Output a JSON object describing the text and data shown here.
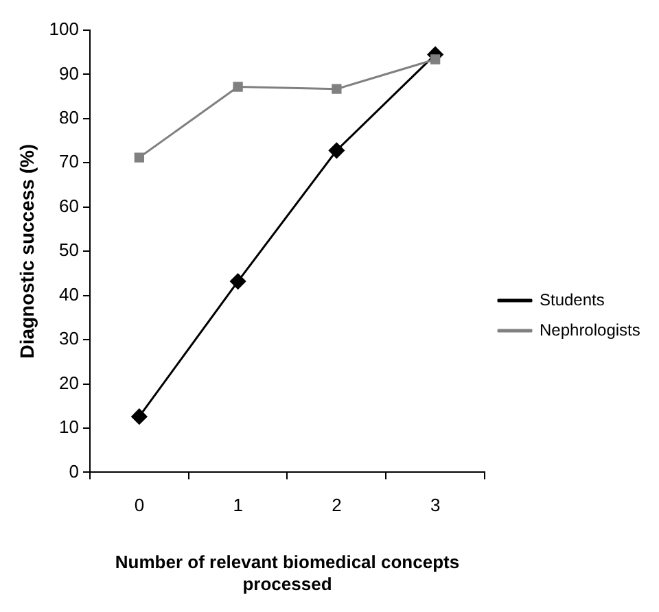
{
  "chart_data": {
    "type": "line",
    "xlabel": "Number of relevant biomedical concepts processed",
    "ylabel": "Diagnostic success (%)",
    "categories": [
      "0",
      "1",
      "2",
      "3"
    ],
    "series": [
      {
        "name": "Students",
        "color": "#000000",
        "marker": "diamond",
        "values": [
          12.6,
          43.2,
          72.8,
          94.5
        ]
      },
      {
        "name": "Nephrologists",
        "color": "#808080",
        "marker": "square",
        "values": [
          71.2,
          87.2,
          86.7,
          93.4
        ]
      }
    ],
    "ylim": [
      0,
      100
    ],
    "yticks": [
      0,
      10,
      20,
      30,
      40,
      50,
      60,
      70,
      80,
      90,
      100
    ],
    "grid": false,
    "legend": "right",
    "line_style": "solid"
  }
}
